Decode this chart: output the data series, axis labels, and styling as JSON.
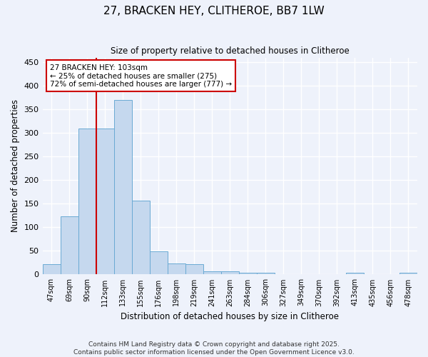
{
  "title": "27, BRACKEN HEY, CLITHEROE, BB7 1LW",
  "subtitle": "Size of property relative to detached houses in Clitheroe",
  "xlabel": "Distribution of detached houses by size in Clitheroe",
  "ylabel": "Number of detached properties",
  "bar_color": "#c5d8ee",
  "bar_edge_color": "#6aaad4",
  "background_color": "#eef2fb",
  "grid_color": "#ffffff",
  "categories": [
    "47sqm",
    "69sqm",
    "90sqm",
    "112sqm",
    "133sqm",
    "155sqm",
    "176sqm",
    "198sqm",
    "219sqm",
    "241sqm",
    "263sqm",
    "284sqm",
    "306sqm",
    "327sqm",
    "349sqm",
    "370sqm",
    "392sqm",
    "413sqm",
    "435sqm",
    "456sqm",
    "478sqm"
  ],
  "values": [
    22,
    124,
    309,
    309,
    370,
    156,
    49,
    23,
    22,
    7,
    7,
    4,
    4,
    0,
    0,
    0,
    0,
    3,
    0,
    0,
    3
  ],
  "ylim": [
    0,
    460
  ],
  "yticks": [
    0,
    50,
    100,
    150,
    200,
    250,
    300,
    350,
    400,
    450
  ],
  "annotation_text": "27 BRACKEN HEY: 103sqm\n← 25% of detached houses are smaller (275)\n72% of semi-detached houses are larger (777) →",
  "annotation_box_color": "#ffffff",
  "annotation_box_edge": "#cc0000",
  "property_line_color": "#cc0000",
  "footer_line1": "Contains HM Land Registry data © Crown copyright and database right 2025.",
  "footer_line2": "Contains public sector information licensed under the Open Government Licence v3.0."
}
